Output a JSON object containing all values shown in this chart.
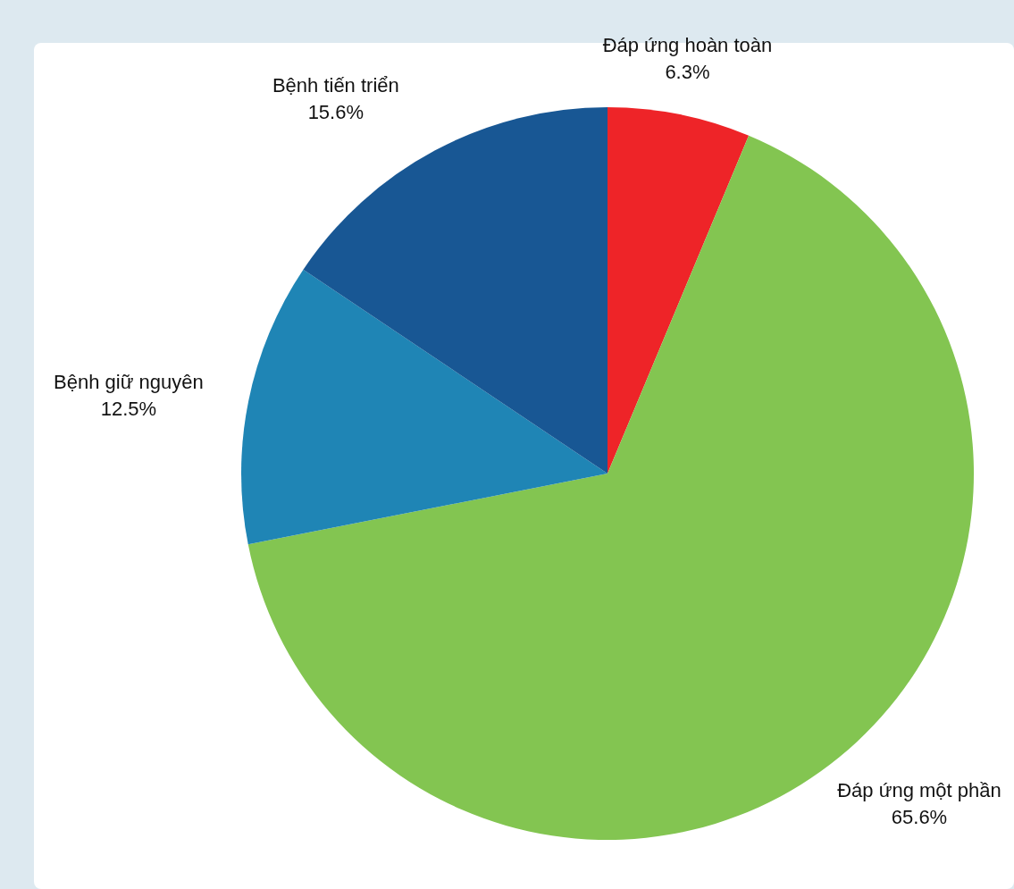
{
  "chart_data": {
    "type": "pie",
    "categories": [
      "Đáp ứng hoàn toàn",
      "Đáp ứng một phần",
      "Bệnh giữ nguyên",
      "Bệnh tiến triển"
    ],
    "values": [
      6.3,
      65.6,
      12.5,
      15.6
    ],
    "colors": [
      "#ee2428",
      "#83c551",
      "#1f85b5",
      "#185794"
    ],
    "value_labels": [
      "6.3%",
      "65.6%",
      "12.5%",
      "15.6%"
    ]
  }
}
